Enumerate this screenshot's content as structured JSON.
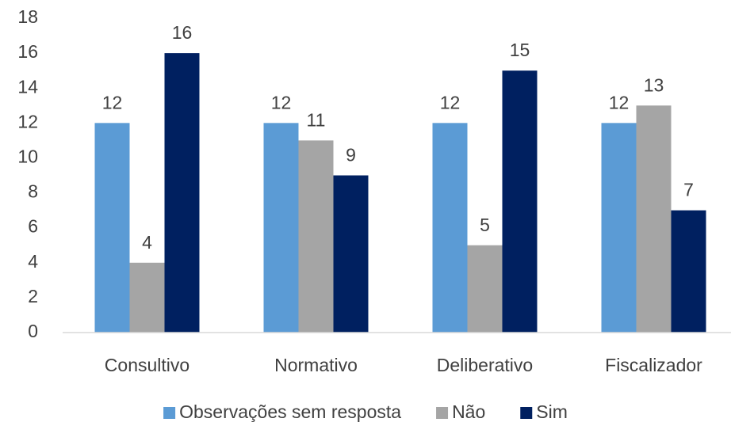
{
  "chart_data": {
    "type": "bar",
    "categories": [
      "Consultivo",
      "Normativo",
      "Deliberativo",
      "Fiscalizador"
    ],
    "series": [
      {
        "name": "Observações sem resposta",
        "color": "#5b9bd5",
        "values": [
          12,
          12,
          12,
          12
        ]
      },
      {
        "name": "Não",
        "color": "#a5a5a5",
        "values": [
          4,
          11,
          5,
          13
        ]
      },
      {
        "name": "Sim",
        "color": "#002060",
        "values": [
          16,
          9,
          15,
          7
        ]
      }
    ],
    "ylim": [
      0,
      18
    ],
    "yticks": [
      0,
      2,
      4,
      6,
      8,
      10,
      12,
      14,
      16,
      18
    ],
    "grid": false,
    "legend": "bottom"
  }
}
